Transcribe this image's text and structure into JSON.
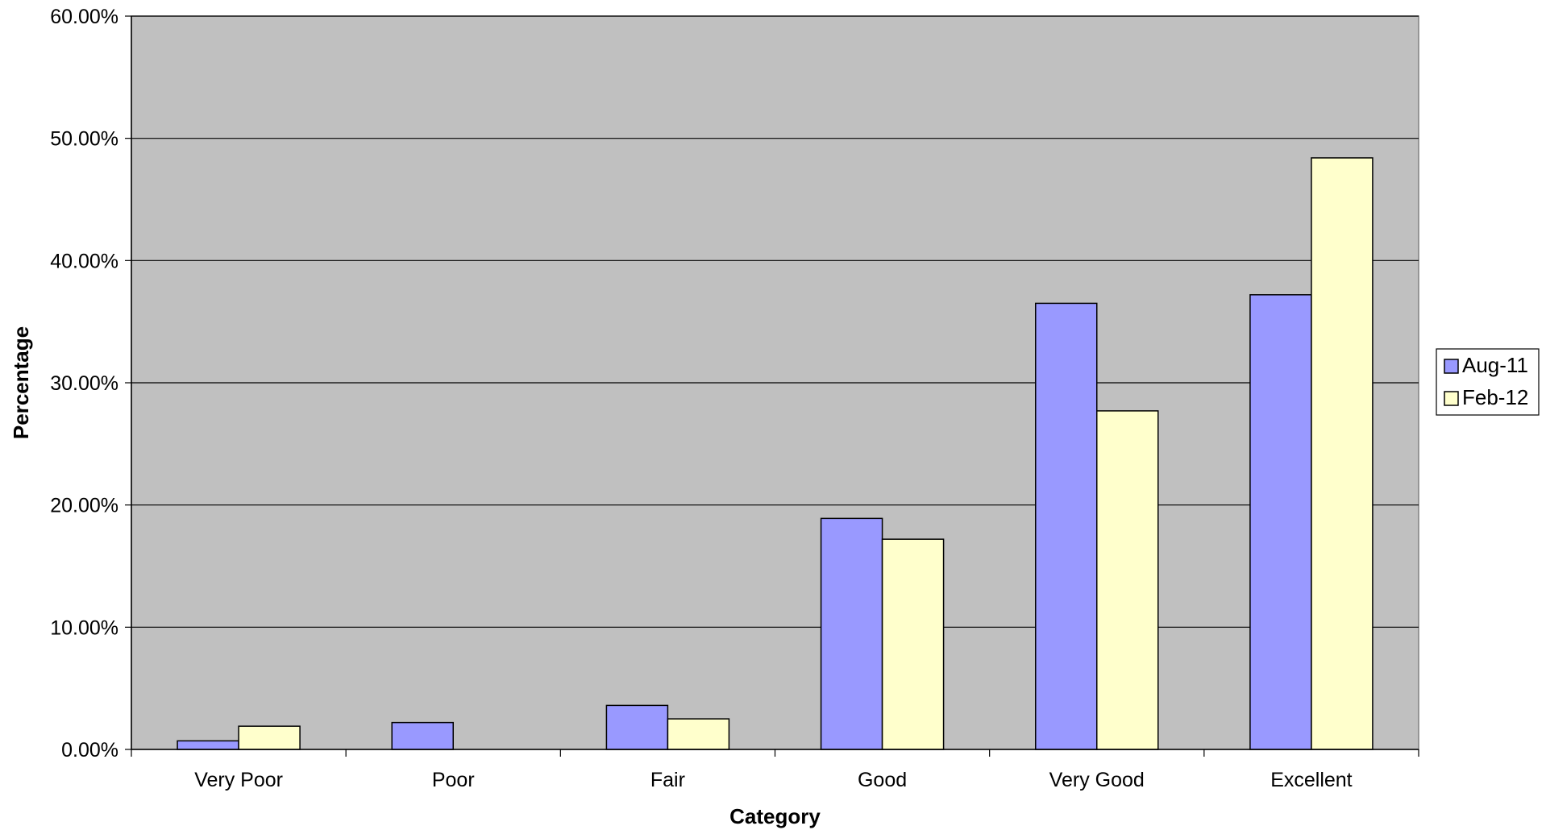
{
  "chart_data": {
    "type": "bar",
    "title": "",
    "xlabel": "Category",
    "ylabel": "Percentage",
    "categories": [
      "Very Poor",
      "Poor",
      "Fair",
      "Good",
      "Very Good",
      "Excellent"
    ],
    "series": [
      {
        "name": "Aug-11",
        "color": "#9999ff",
        "values": [
          0.7,
          2.2,
          3.6,
          18.9,
          36.5,
          37.2
        ]
      },
      {
        "name": "Feb-12",
        "color": "#ffffcc",
        "values": [
          1.9,
          0.0,
          2.5,
          17.2,
          27.7,
          48.4
        ]
      }
    ],
    "ylim": [
      0,
      60
    ],
    "yticks": [
      0,
      10,
      20,
      30,
      40,
      50,
      60
    ],
    "ytick_labels": [
      "0.00%",
      "10.00%",
      "20.00%",
      "30.00%",
      "40.00%",
      "50.00%",
      "60.00%"
    ],
    "grid": true,
    "legend_position": "right",
    "plot_background": "#c0c0c0"
  }
}
